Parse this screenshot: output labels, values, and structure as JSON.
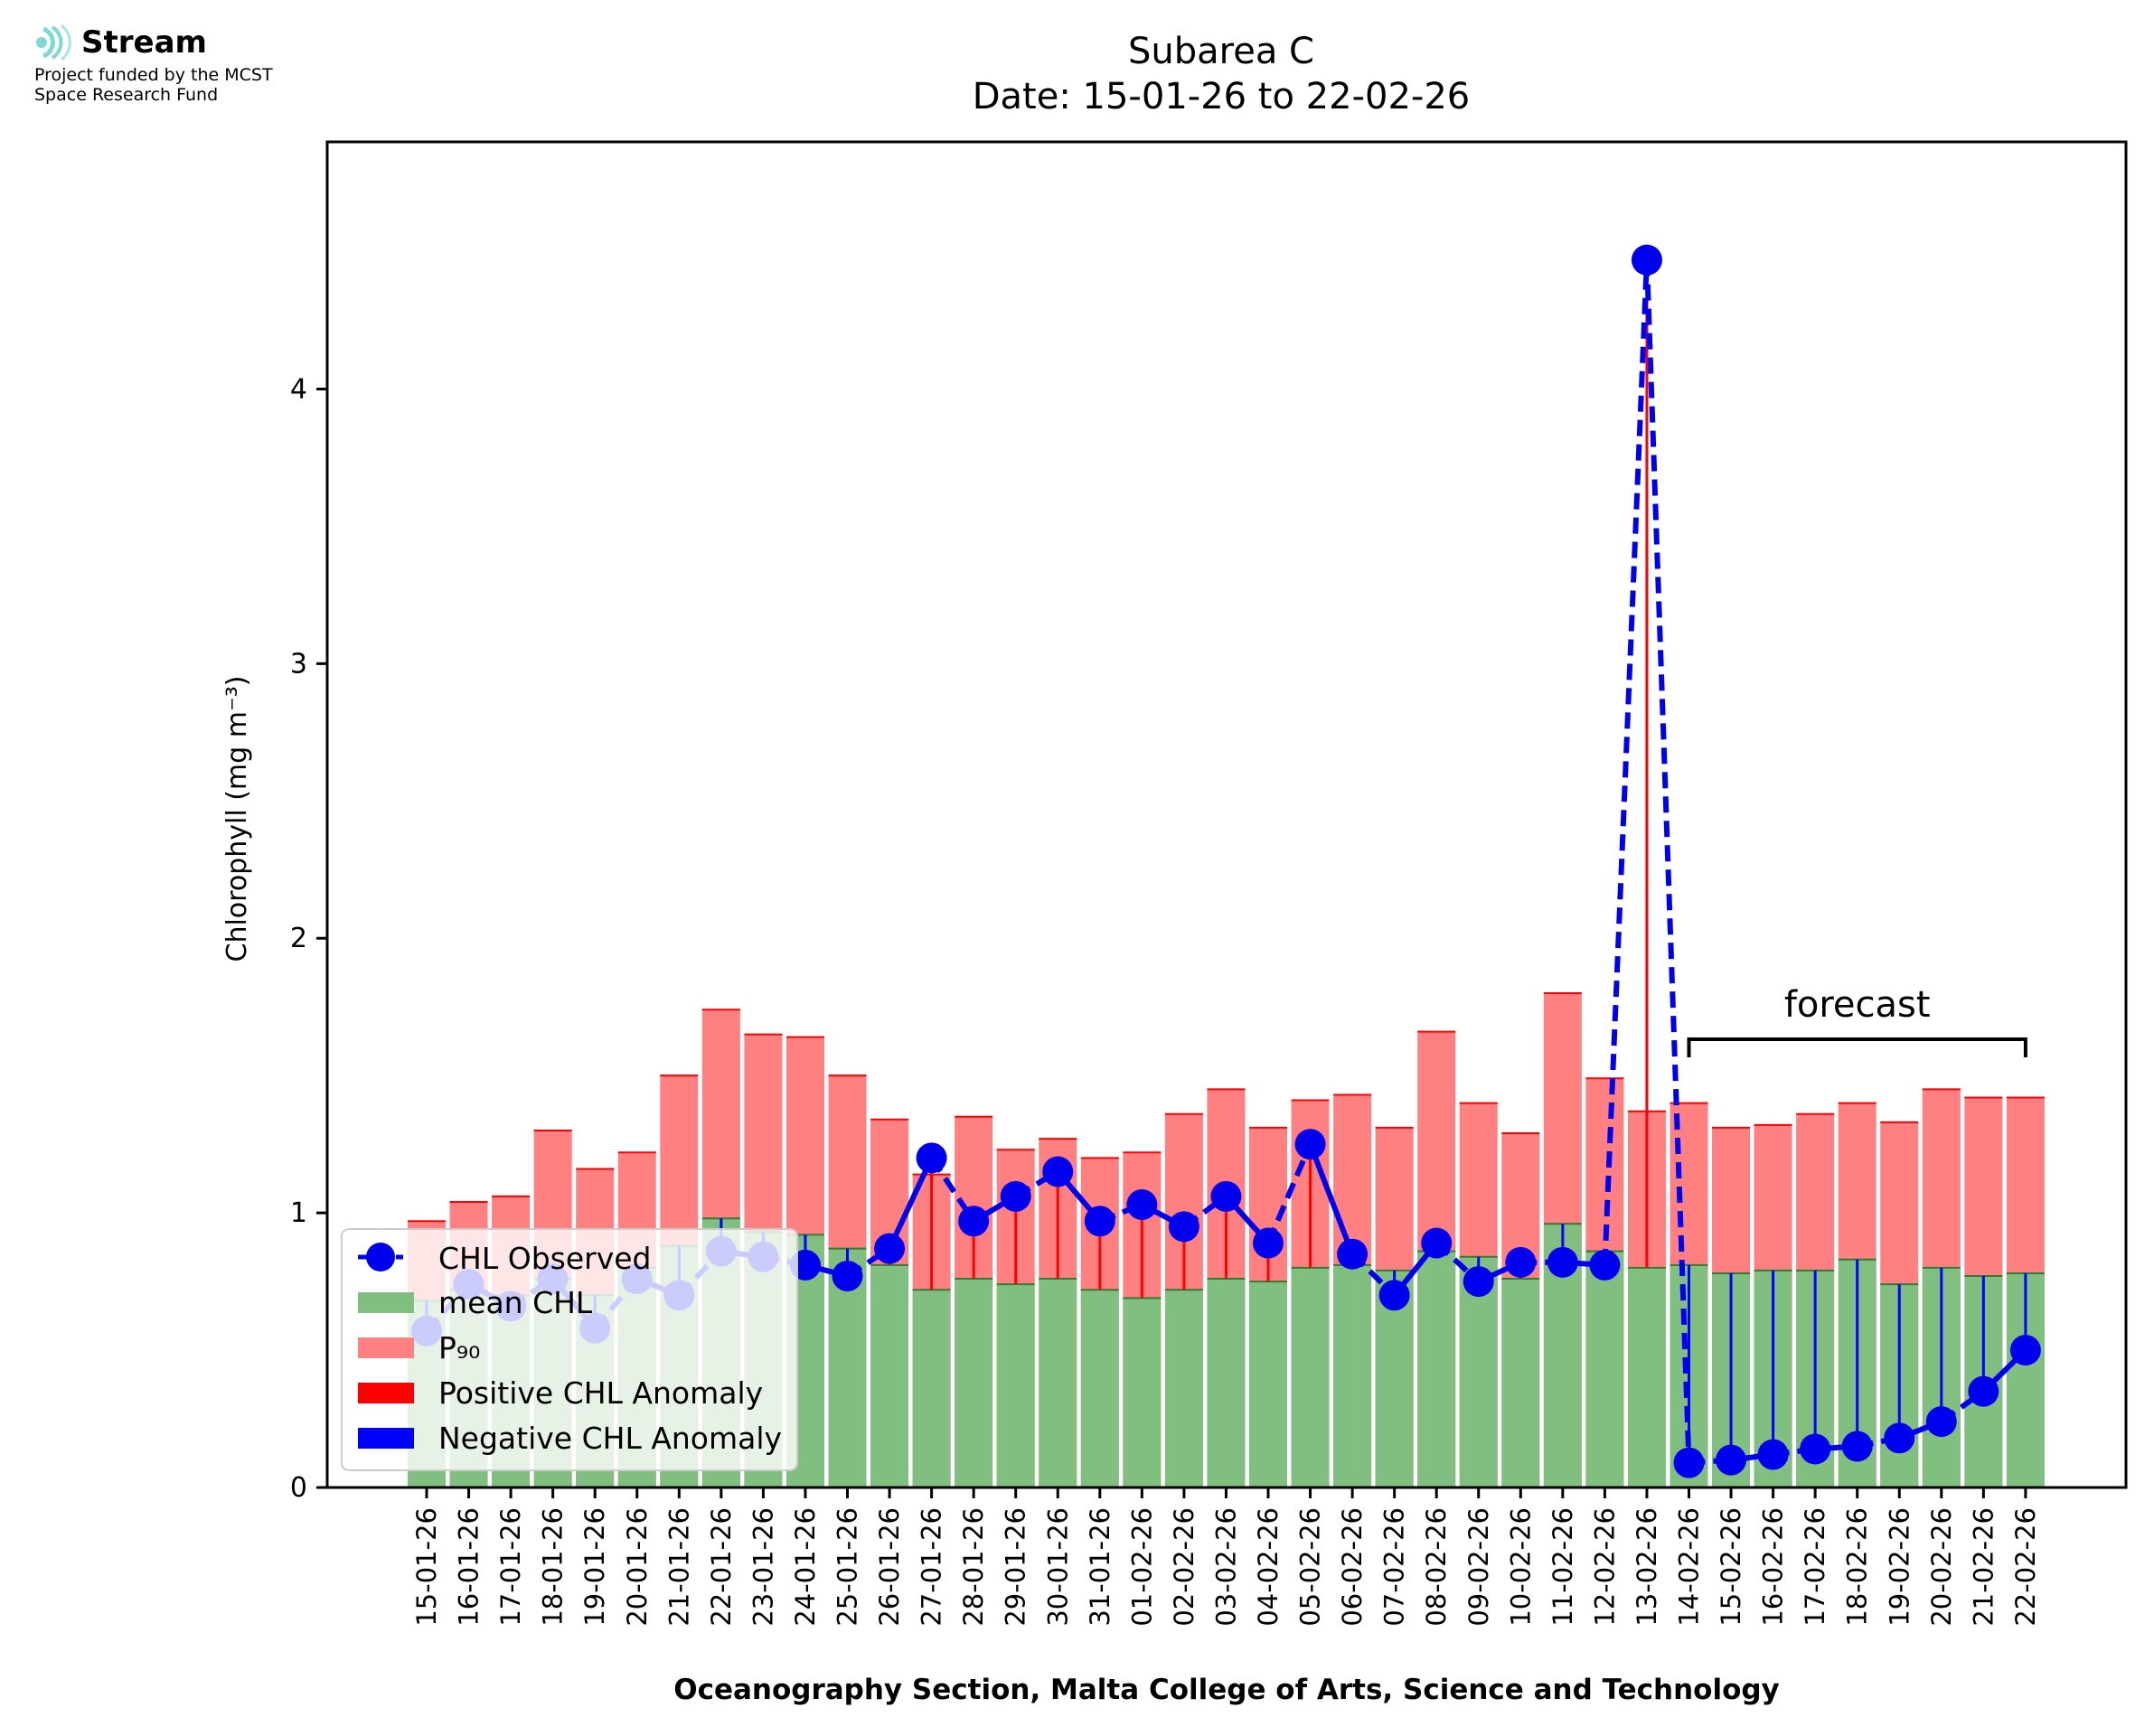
{
  "logo": {
    "brand_name": "Stream",
    "funding_line1": "Project funded by the MCST",
    "funding_line2": "Space Research Fund",
    "brand_icon": "signal-waves-icon",
    "brand_color": "#7fd8d4"
  },
  "chart_data": {
    "type": "bar",
    "title": "Subarea C",
    "subtitle": "Date: 15-01-26 to 22-02-26",
    "xlabel": "Oceanography Section, Malta College of Arts, Science and Technology",
    "ylabel": "Chlorophyll (mg m⁻³)",
    "ylim": [
      0,
      4.9
    ],
    "yticks": [
      0,
      1,
      2,
      3,
      4
    ],
    "ytick_labels": [
      "0",
      "1",
      "2",
      "3",
      "4"
    ],
    "categories": [
      "15-01-26",
      "16-01-26",
      "17-01-26",
      "18-01-26",
      "19-01-26",
      "20-01-26",
      "21-01-26",
      "22-01-26",
      "23-01-26",
      "24-01-26",
      "25-01-26",
      "26-01-26",
      "27-01-26",
      "28-01-26",
      "29-01-26",
      "30-01-26",
      "31-01-26",
      "01-02-26",
      "02-02-26",
      "03-02-26",
      "04-02-26",
      "05-02-26",
      "06-02-26",
      "07-02-26",
      "08-02-26",
      "09-02-26",
      "10-02-26",
      "11-02-26",
      "12-02-26",
      "13-02-26",
      "14-02-26",
      "15-02-26",
      "16-02-26",
      "17-02-26",
      "18-02-26",
      "19-02-26",
      "20-02-26",
      "21-02-26",
      "22-02-26"
    ],
    "series": [
      {
        "name": "P₉₀",
        "type": "bar",
        "color": "#ff8080",
        "values": [
          0.97,
          1.04,
          1.06,
          1.3,
          1.16,
          1.22,
          1.5,
          1.74,
          1.65,
          1.64,
          1.5,
          1.34,
          1.14,
          1.35,
          1.23,
          1.27,
          1.2,
          1.22,
          1.36,
          1.45,
          1.31,
          1.41,
          1.43,
          1.31,
          1.66,
          1.4,
          1.29,
          1.8,
          1.49,
          1.37,
          1.4,
          1.31,
          1.32,
          1.36,
          1.4,
          1.33,
          1.45,
          1.42,
          1.42
        ]
      },
      {
        "name": "mean CHL",
        "type": "bar",
        "color": "#80bf80",
        "values": [
          0.68,
          0.72,
          0.7,
          0.76,
          0.7,
          0.8,
          0.88,
          0.98,
          0.93,
          0.92,
          0.87,
          0.81,
          0.72,
          0.76,
          0.74,
          0.76,
          0.72,
          0.69,
          0.72,
          0.76,
          0.75,
          0.8,
          0.81,
          0.79,
          0.86,
          0.84,
          0.76,
          0.96,
          0.86,
          0.8,
          0.81,
          0.78,
          0.79,
          0.79,
          0.83,
          0.74,
          0.8,
          0.77,
          0.78
        ]
      },
      {
        "name": "CHL Observed",
        "type": "line",
        "color": "#0000ee",
        "values": [
          0.57,
          0.74,
          0.66,
          0.76,
          0.58,
          0.76,
          0.7,
          0.86,
          0.84,
          0.81,
          0.77,
          0.87,
          1.2,
          0.97,
          1.06,
          1.15,
          0.97,
          1.03,
          0.95,
          1.06,
          0.89,
          1.25,
          0.85,
          0.7,
          0.89,
          0.75,
          0.82,
          0.82,
          0.81,
          4.47,
          0.09,
          0.1,
          0.12,
          0.14,
          0.15,
          0.18,
          0.24,
          0.35,
          0.5
        ]
      }
    ],
    "legend": {
      "position": "lower-left",
      "entries": [
        {
          "label": "CHL Observed",
          "kind": "line-marker",
          "color": "#0000ee"
        },
        {
          "label": "mean CHL",
          "kind": "patch",
          "color": "#80bf80"
        },
        {
          "label": "P₉₀",
          "kind": "patch",
          "color": "#ff8080"
        },
        {
          "label": "Positive CHL Anomaly",
          "kind": "patch",
          "color": "#ff0000"
        },
        {
          "label": "Negative CHL Anomaly",
          "kind": "patch",
          "color": "#0000ff"
        }
      ]
    },
    "annotation": {
      "text": "forecast",
      "start": "14-02-26",
      "end": "22-02-26"
    },
    "colors": {
      "p90_edge": "#ff0000",
      "mean_edge": "#2e7d32",
      "positive_anomaly": "#ff0000",
      "negative_anomaly": "#0000ff"
    },
    "grid": false
  }
}
